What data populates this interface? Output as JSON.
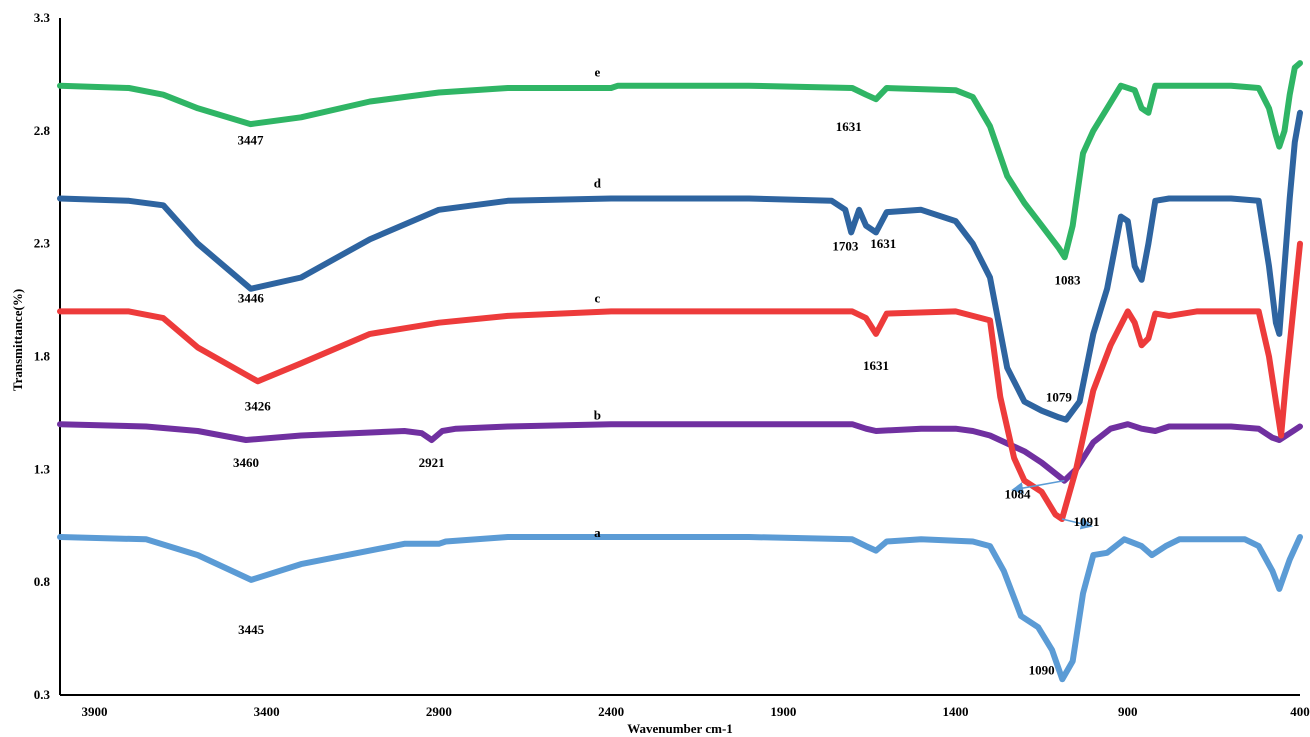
{
  "chart_data": {
    "type": "line",
    "title": "",
    "xlabel": "Wavenumber cm-1",
    "ylabel": "Transmittance(%)",
    "xlim": [
      4000,
      400
    ],
    "ylim": [
      0.3,
      3.3
    ],
    "x_reversed": true,
    "grid": false,
    "legend": "none",
    "x_ticks": [
      "3900",
      "3400",
      "2900",
      "2400",
      "1900",
      "1400",
      "900",
      "400"
    ],
    "y_ticks": [
      "0.3",
      "0.8",
      "1.3",
      "1.8",
      "2.3",
      "2.8",
      "3.3"
    ],
    "series": [
      {
        "name": "a",
        "color": "#5b9bd5",
        "label_at": [
          2440,
          1.0
        ],
        "x": [
          4000,
          3750,
          3600,
          3445,
          3300,
          3000,
          2900,
          2880,
          2700,
          2400,
          2000,
          1700,
          1660,
          1631,
          1600,
          1500,
          1350,
          1300,
          1260,
          1210,
          1160,
          1120,
          1090,
          1060,
          1030,
          1000,
          960,
          910,
          860,
          830,
          790,
          750,
          660,
          560,
          520,
          480,
          460,
          430,
          400
        ],
        "y": [
          1.0,
          0.99,
          0.92,
          0.81,
          0.88,
          0.97,
          0.97,
          0.98,
          1.0,
          1.0,
          1.0,
          0.99,
          0.96,
          0.94,
          0.98,
          0.99,
          0.98,
          0.96,
          0.85,
          0.65,
          0.6,
          0.5,
          0.37,
          0.45,
          0.75,
          0.92,
          0.93,
          0.99,
          0.96,
          0.92,
          0.96,
          0.99,
          0.99,
          0.99,
          0.96,
          0.85,
          0.77,
          0.9,
          1.0
        ]
      },
      {
        "name": "b",
        "color": "#7030a0",
        "label_at": [
          2440,
          1.52
        ],
        "x": [
          4000,
          3750,
          3600,
          3460,
          3300,
          3000,
          2950,
          2921,
          2890,
          2850,
          2700,
          2400,
          2000,
          1700,
          1660,
          1631,
          1500,
          1400,
          1350,
          1300,
          1200,
          1150,
          1084,
          1050,
          1000,
          950,
          900,
          860,
          820,
          780,
          700,
          600,
          520,
          480,
          460,
          430,
          400
        ],
        "y": [
          1.5,
          1.49,
          1.47,
          1.43,
          1.45,
          1.47,
          1.46,
          1.43,
          1.47,
          1.48,
          1.49,
          1.5,
          1.5,
          1.5,
          1.48,
          1.47,
          1.48,
          1.48,
          1.47,
          1.45,
          1.38,
          1.33,
          1.25,
          1.3,
          1.42,
          1.48,
          1.5,
          1.48,
          1.47,
          1.49,
          1.49,
          1.49,
          1.48,
          1.44,
          1.43,
          1.46,
          1.49
        ]
      },
      {
        "name": "c",
        "color": "#ed3b3b",
        "label_at": [
          2440,
          2.04
        ],
        "x": [
          4000,
          3800,
          3700,
          3600,
          3426,
          3300,
          3100,
          2900,
          2700,
          2400,
          2000,
          1700,
          1660,
          1631,
          1600,
          1400,
          1350,
          1300,
          1270,
          1230,
          1200,
          1150,
          1110,
          1091,
          1050,
          1000,
          950,
          900,
          880,
          860,
          840,
          820,
          780,
          700,
          600,
          520,
          490,
          470,
          455,
          440,
          420,
          400
        ],
        "y": [
          2.0,
          2.0,
          1.97,
          1.84,
          1.69,
          1.77,
          1.9,
          1.95,
          1.98,
          2.0,
          2.0,
          2.0,
          1.97,
          1.9,
          1.99,
          2.0,
          1.98,
          1.96,
          1.62,
          1.35,
          1.25,
          1.2,
          1.1,
          1.08,
          1.3,
          1.65,
          1.85,
          2.0,
          1.95,
          1.85,
          1.88,
          1.99,
          1.98,
          2.0,
          2.0,
          2.0,
          1.8,
          1.6,
          1.45,
          1.7,
          2.0,
          2.3
        ]
      },
      {
        "name": "d",
        "color": "#2e64a0",
        "label_at": [
          2440,
          2.55
        ],
        "x": [
          4000,
          3800,
          3700,
          3600,
          3446,
          3300,
          3100,
          2900,
          2700,
          2400,
          2000,
          1760,
          1720,
          1703,
          1680,
          1660,
          1631,
          1600,
          1500,
          1400,
          1350,
          1300,
          1250,
          1200,
          1150,
          1100,
          1079,
          1040,
          1000,
          960,
          920,
          900,
          880,
          860,
          840,
          820,
          780,
          700,
          600,
          520,
          490,
          470,
          460,
          445,
          430,
          415,
          400
        ],
        "y": [
          2.5,
          2.49,
          2.47,
          2.3,
          2.1,
          2.15,
          2.32,
          2.45,
          2.49,
          2.5,
          2.5,
          2.49,
          2.45,
          2.35,
          2.45,
          2.38,
          2.35,
          2.44,
          2.45,
          2.4,
          2.3,
          2.15,
          1.75,
          1.6,
          1.56,
          1.53,
          1.52,
          1.6,
          1.9,
          2.1,
          2.42,
          2.4,
          2.2,
          2.14,
          2.3,
          2.49,
          2.5,
          2.5,
          2.5,
          2.49,
          2.2,
          1.95,
          1.9,
          2.2,
          2.5,
          2.75,
          2.88
        ]
      },
      {
        "name": "e",
        "color": "#2fb565",
        "label_at": [
          2440,
          3.04
        ],
        "x": [
          4000,
          3800,
          3700,
          3600,
          3447,
          3300,
          3100,
          2900,
          2700,
          2400,
          2380,
          2000,
          1700,
          1660,
          1631,
          1600,
          1400,
          1350,
          1300,
          1250,
          1200,
          1150,
          1100,
          1083,
          1060,
          1030,
          1000,
          960,
          920,
          880,
          860,
          840,
          820,
          780,
          700,
          600,
          520,
          490,
          470,
          460,
          445,
          430,
          415,
          400
        ],
        "y": [
          3.0,
          2.99,
          2.96,
          2.9,
          2.83,
          2.86,
          2.93,
          2.97,
          2.99,
          2.99,
          3.0,
          3.0,
          2.99,
          2.96,
          2.94,
          2.99,
          2.98,
          2.95,
          2.82,
          2.6,
          2.48,
          2.38,
          2.28,
          2.24,
          2.38,
          2.7,
          2.8,
          2.9,
          3.0,
          2.98,
          2.9,
          2.88,
          3.0,
          3.0,
          3.0,
          3.0,
          2.99,
          2.9,
          2.78,
          2.73,
          2.8,
          2.96,
          3.08,
          3.1
        ]
      }
    ],
    "annotations": [
      {
        "text": "3445",
        "x": 3445,
        "y": 0.57
      },
      {
        "text": "1090",
        "x": 1150,
        "y": 0.39
      },
      {
        "text": "3460",
        "x": 3460,
        "y": 1.31
      },
      {
        "text": "2921",
        "x": 2921,
        "y": 1.31
      },
      {
        "text": "1084",
        "x": 1220,
        "y": 1.17
      },
      {
        "text": "1091",
        "x": 1020,
        "y": 1.05
      },
      {
        "text": "3426",
        "x": 3426,
        "y": 1.56
      },
      {
        "text": "1631",
        "x": 1631,
        "y": 1.74
      },
      {
        "text": "1079",
        "x": 1100,
        "y": 1.6
      },
      {
        "text": "3446",
        "x": 3446,
        "y": 2.04
      },
      {
        "text": "1703",
        "x": 1720,
        "y": 2.27
      },
      {
        "text": "1631",
        "x": 1610,
        "y": 2.28
      },
      {
        "text": "1083",
        "x": 1075,
        "y": 2.12
      },
      {
        "text": "3447",
        "x": 3447,
        "y": 2.74
      },
      {
        "text": "1631",
        "x": 1710,
        "y": 2.8
      }
    ],
    "arrows": [
      {
        "from": [
          1084,
          1.25
        ],
        "to": [
          1230,
          1.21
        ]
      },
      {
        "from": [
          1091,
          1.08
        ],
        "to": [
          1010,
          1.05
        ]
      }
    ]
  }
}
